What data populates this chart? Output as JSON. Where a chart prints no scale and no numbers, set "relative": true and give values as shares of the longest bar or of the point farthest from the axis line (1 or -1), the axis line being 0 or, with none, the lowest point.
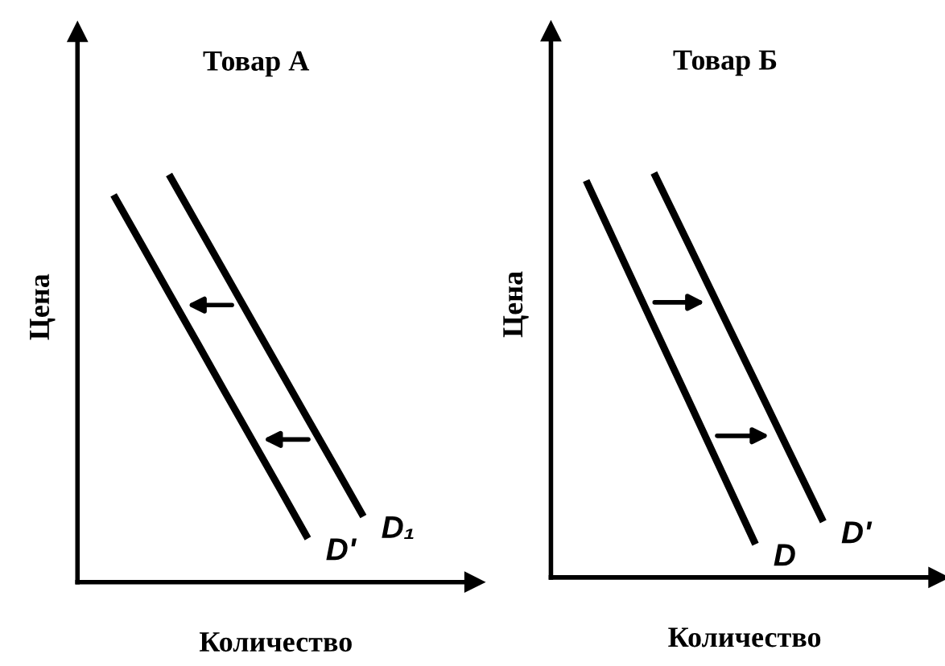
{
  "chart_data": [
    {
      "type": "line",
      "title": "Товар А",
      "xlabel": "Количество",
      "ylabel": "Цена",
      "relative": true,
      "tick_labels": false,
      "legend": false,
      "marker": "none",
      "line_style": "solid",
      "categories": [
        null,
        null,
        null,
        null,
        null,
        null,
        null,
        null,
        null,
        null
      ],
      "series": [
        {
          "name": "D₁",
          "color": "#000000",
          "values": [
            null,
            null,
            1,
            0.88,
            0.76,
            0.64,
            0.52,
            0.4,
            0.281,
            0.161
          ]
        },
        {
          "name": "D'",
          "color": "#000000",
          "values": [
            0.95,
            0.83,
            0.709,
            0.589,
            0.468,
            0.348,
            0.228,
            0.107,
            null,
            null
          ]
        }
      ]
    },
    {
      "type": "line",
      "title": "Товар Б",
      "xlabel": "Количество",
      "ylabel": "Цена",
      "relative": true,
      "tick_labels": false,
      "legend": false,
      "marker": "none",
      "line_style": "solid",
      "categories": [
        null,
        null,
        null,
        null,
        null,
        null,
        null,
        null
      ],
      "series": [
        {
          "name": "D",
          "color": "#000000",
          "values": [
            0.981,
            0.801,
            0.621,
            0.442,
            0.262,
            0.082,
            null,
            null
          ]
        },
        {
          "name": "D'",
          "color": "#000000",
          "values": [
            null,
            null,
            1,
            0.828,
            0.655,
            0.483,
            0.31,
            0.138
          ]
        }
      ]
    }
  ]
}
